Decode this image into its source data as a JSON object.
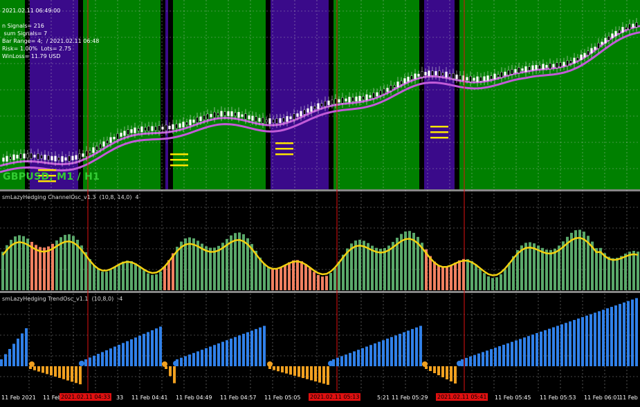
{
  "colors": {
    "bg": "#000000",
    "trend_up": "#008000",
    "trend_down": "#3a0a8a",
    "grid": "#c8c8c8",
    "ma": "#c25bd8",
    "candle_bull": "#ffffff",
    "candle_bear": "#000000",
    "channel_hot": "#f08060",
    "channel_cold": "#5aa86a",
    "channel_line": "#f2d010",
    "trend_pos": "#3080e8",
    "trend_neg": "#f0a020",
    "marker": "#e01010"
  },
  "main_chart": {
    "info_lines": [
      "2021.02.11 06:49:00",
      "",
      "n Signals= 216",
      " sum Signals= 7",
      "Bar Range= 4;  / 2021.02.11 06:48",
      "Risk= 1.00%  Lots= 2.75",
      "WinLoss= 11.79 USD"
    ],
    "symbol_label": "GBPUSD, M1 / H1"
  },
  "indicator1": {
    "label": "smLazyHedging ChannelOsc_v1.3  (10,8, 14,0)  4"
  },
  "indicator2": {
    "label": "smLazyHedging TrendOsc_v1.1  (10,8,0)  -4"
  },
  "time_axis": {
    "labels": [
      "11 Feb 2021",
      "11 Feb",
      "33",
      "11 Feb 04:41",
      "11 Feb 04:49",
      "11 Feb 04:57",
      "11 Feb 05:05",
      "5:21",
      "11 Feb 05:29",
      "11 Feb 05:45",
      "11 Feb 05:53",
      "11 Feb 06:01",
      "11 Feb"
    ],
    "markers": [
      "2021.02.11 04:33",
      "2021.02.11 05:13",
      "2021.02.11 05:41"
    ]
  }
}
